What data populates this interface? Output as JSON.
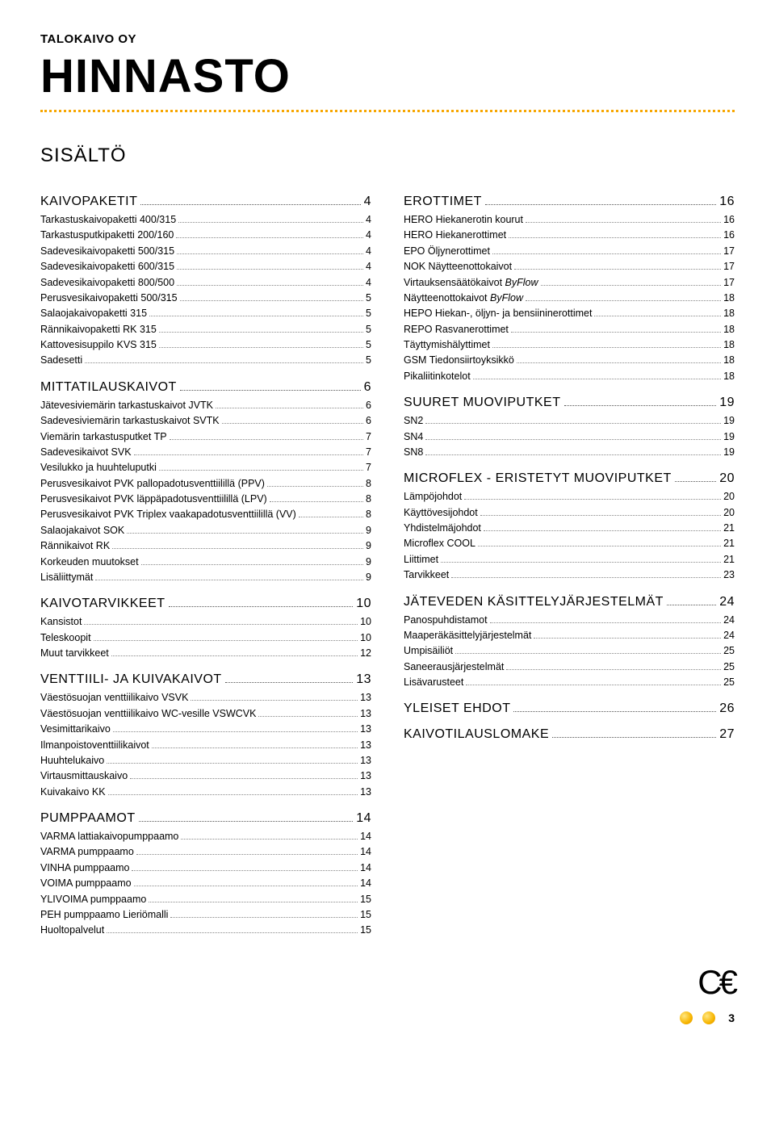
{
  "company": "TALOKAIVO OY",
  "title": "HINNASTO",
  "toc_heading": "SISÄLTÖ",
  "page_number": "3",
  "colors": {
    "accent": "#f7a600",
    "text": "#000000",
    "bg": "#ffffff",
    "leader": "#888888"
  },
  "left": [
    {
      "type": "section",
      "label": "KAIVOPAKETIT",
      "page": "4"
    },
    {
      "type": "item",
      "label": "Tarkastuskaivopaketti 400/315",
      "page": "4"
    },
    {
      "type": "item",
      "label": "Tarkastusputkipaketti 200/160",
      "page": "4"
    },
    {
      "type": "item",
      "label": "Sadevesikaivopaketti 500/315",
      "page": "4"
    },
    {
      "type": "item",
      "label": "Sadevesikaivopaketti 600/315",
      "page": "4"
    },
    {
      "type": "item",
      "label": "Sadevesikaivopaketti 800/500",
      "page": "4"
    },
    {
      "type": "item",
      "label": "Perusvesikaivopaketti 500/315",
      "page": "5"
    },
    {
      "type": "item",
      "label": "Salaojakaivopaketti 315",
      "page": "5"
    },
    {
      "type": "item",
      "label": "Rännikaivopaketti RK 315",
      "page": "5"
    },
    {
      "type": "item",
      "label": "Kattovesisuppilo KVS 315",
      "page": "5"
    },
    {
      "type": "item",
      "label": "Sadesetti",
      "page": "5"
    },
    {
      "type": "section",
      "label": "MITTATILAUSKAIVOT",
      "page": "6"
    },
    {
      "type": "item",
      "label": "Jätevesiviemärin tarkastuskaivot JVTK",
      "page": "6"
    },
    {
      "type": "item",
      "label": "Sadevesiviemärin tarkastuskaivot SVTK",
      "page": "6"
    },
    {
      "type": "item",
      "label": "Viemärin tarkastusputket TP",
      "page": "7"
    },
    {
      "type": "item",
      "label": "Sadevesikaivot SVK",
      "page": "7"
    },
    {
      "type": "item",
      "label": "Vesilukko ja huuhteluputki",
      "page": "7"
    },
    {
      "type": "item",
      "label": "Perusvesikaivot PVK pallopadotusventtiilillä (PPV)",
      "page": "8"
    },
    {
      "type": "item",
      "label": "Perusvesikaivot PVK läppäpadotusventtiilillä (LPV)",
      "page": "8"
    },
    {
      "type": "item",
      "label": "Perusvesikaivot PVK Triplex vaakapadotusventtiilillä (VV)",
      "page": "8"
    },
    {
      "type": "item",
      "label": "Salaojakaivot SOK",
      "page": "9"
    },
    {
      "type": "item",
      "label": "Rännikaivot RK",
      "page": "9"
    },
    {
      "type": "item",
      "label": "Korkeuden muutokset",
      "page": "9"
    },
    {
      "type": "item",
      "label": "Lisäliittymät",
      "page": "9"
    },
    {
      "type": "section",
      "label": "KAIVOTARVIKKEET",
      "page": "10"
    },
    {
      "type": "item",
      "label": "Kansistot",
      "page": "10"
    },
    {
      "type": "item",
      "label": "Teleskoopit",
      "page": "10"
    },
    {
      "type": "item",
      "label": "Muut tarvikkeet",
      "page": "12"
    },
    {
      "type": "section",
      "label": "VENTTIILI- JA KUIVAKAIVOT",
      "page": "13"
    },
    {
      "type": "item",
      "label": "Väestösuojan venttiilikaivo VSVK",
      "page": "13"
    },
    {
      "type": "item",
      "label": "Väestösuojan venttiilikaivo WC-vesille VSWCVK",
      "page": "13"
    },
    {
      "type": "item",
      "label": "Vesimittarikaivo",
      "page": "13"
    },
    {
      "type": "item",
      "label": "Ilmanpoistoventtiilikaivot",
      "page": "13"
    },
    {
      "type": "item",
      "label": "Huuhtelukaivo",
      "page": "13"
    },
    {
      "type": "item",
      "label": "Virtausmittauskaivo",
      "page": "13"
    },
    {
      "type": "item",
      "label": "Kuivakaivo KK",
      "page": "13"
    },
    {
      "type": "section",
      "label": "PUMPPAAMOT",
      "page": "14"
    },
    {
      "type": "item",
      "label": "VARMA lattiakaivopumppaamo",
      "page": "14"
    },
    {
      "type": "item",
      "label": "VARMA pumppaamo",
      "page": "14"
    },
    {
      "type": "item",
      "label": "VINHA pumppaamo",
      "page": "14"
    },
    {
      "type": "item",
      "label": "VOIMA pumppaamo",
      "page": "14"
    },
    {
      "type": "item",
      "label": "YLIVOIMA pumppaamo",
      "page": "15"
    },
    {
      "type": "item",
      "label": "PEH pumppaamo Lieriömalli",
      "page": "15"
    },
    {
      "type": "item",
      "label": "Huoltopalvelut",
      "page": "15"
    }
  ],
  "right": [
    {
      "type": "section",
      "label": "EROTTIMET",
      "page": "16"
    },
    {
      "type": "item",
      "label": "HERO Hiekanerotin kourut",
      "page": "16"
    },
    {
      "type": "item",
      "label": "HERO Hiekanerottimet",
      "page": "16"
    },
    {
      "type": "item",
      "label": "EPO Öljynerottimet",
      "page": "17"
    },
    {
      "type": "item",
      "label": "NOK Näytteenottokaivot",
      "page": "17"
    },
    {
      "type": "item",
      "label": "Virtauksensäätökaivot",
      "suffix_italic": "ByFlow",
      "page": "17"
    },
    {
      "type": "item",
      "label": "Näytteenottokaivot",
      "suffix_italic": "ByFlow",
      "page": "18"
    },
    {
      "type": "item",
      "label": "HEPO Hiekan-, öljyn- ja bensiininerottimet",
      "page": "18"
    },
    {
      "type": "item",
      "label": "REPO Rasvanerottimet",
      "page": "18"
    },
    {
      "type": "item",
      "label": "Täyttymishälyttimet",
      "page": "18"
    },
    {
      "type": "item",
      "label": "GSM Tiedonsiirtoyksikkö",
      "page": "18"
    },
    {
      "type": "item",
      "label": "Pikaliitinkotelot",
      "page": "18"
    },
    {
      "type": "section",
      "label": "SUURET MUOVIPUTKET",
      "page": "19"
    },
    {
      "type": "item",
      "label": "SN2",
      "page": "19"
    },
    {
      "type": "item",
      "label": "SN4",
      "page": "19"
    },
    {
      "type": "item",
      "label": "SN8",
      "page": "19"
    },
    {
      "type": "section",
      "label": "MICROFLEX - ERISTETYT MUOVIPUTKET",
      "page": "20"
    },
    {
      "type": "item",
      "label": "Lämpöjohdot",
      "page": "20"
    },
    {
      "type": "item",
      "label": "Käyttövesijohdot",
      "page": "20"
    },
    {
      "type": "item",
      "label": "Yhdistelmäjohdot",
      "page": "21"
    },
    {
      "type": "item",
      "label": "Microflex COOL",
      "page": "21"
    },
    {
      "type": "item",
      "label": "Liittimet",
      "page": "21"
    },
    {
      "type": "item",
      "label": "Tarvikkeet",
      "page": "23"
    },
    {
      "type": "section",
      "label": "JÄTEVEDEN KÄSITTELYJÄRJESTELMÄT",
      "page": "24"
    },
    {
      "type": "item",
      "label": "Panospuhdistamot",
      "page": "24"
    },
    {
      "type": "item",
      "label": "Maaperäkäsittelyjärjestelmät",
      "page": "24"
    },
    {
      "type": "item",
      "label": "Umpisäiliöt",
      "page": "25"
    },
    {
      "type": "item",
      "label": "Saneerausjärjestelmät",
      "page": "25"
    },
    {
      "type": "item",
      "label": "Lisävarusteet",
      "page": "25"
    },
    {
      "type": "section",
      "label": "YLEISET EHDOT",
      "page": "26"
    },
    {
      "type": "section",
      "label": "KAIVOTILAUSLOMAKE",
      "page": "27"
    }
  ]
}
